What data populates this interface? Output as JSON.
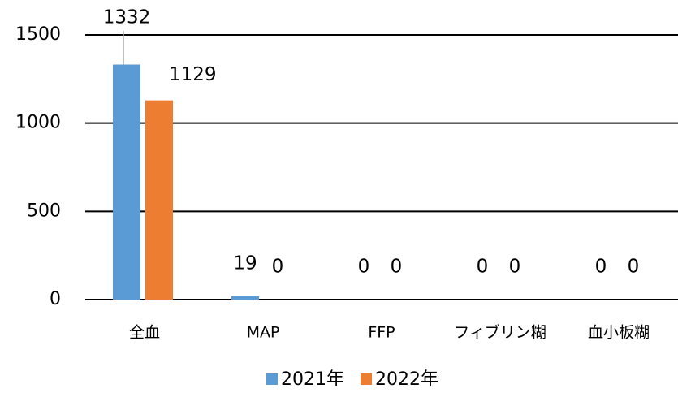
{
  "chart_data": {
    "type": "bar",
    "categories": [
      "全血",
      "MAP",
      "FFP",
      "フィブリン糊",
      "血小板糊"
    ],
    "series": [
      {
        "name": "2021年",
        "color": "#5b9bd5",
        "values": [
          1332,
          19,
          0,
          0,
          0
        ]
      },
      {
        "name": "2022年",
        "color": "#ed7d31",
        "values": [
          1129,
          0,
          0,
          0,
          0
        ]
      }
    ],
    "ylim": [
      0,
      1500
    ],
    "yticks": [
      0,
      500,
      1000,
      1500
    ],
    "grid": true,
    "legend": "bottom"
  }
}
